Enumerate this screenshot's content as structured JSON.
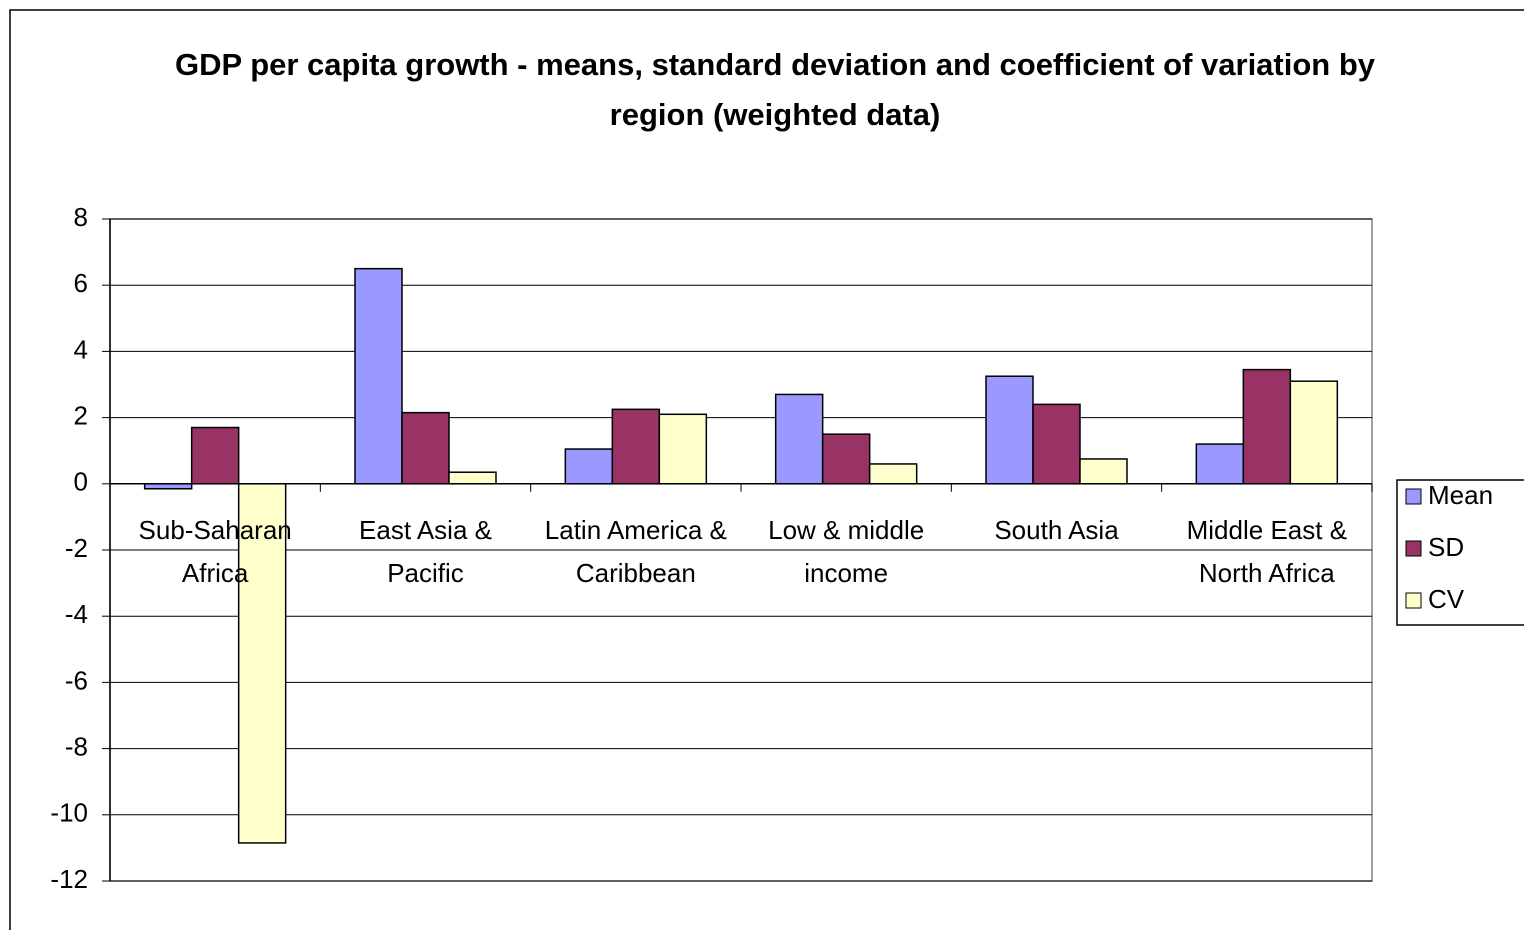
{
  "chart_data": {
    "type": "bar",
    "title": "GDP per capita growth  -  means, standard deviation and coefficient of variation by region (weighted data)",
    "categories": [
      "Sub-Saharan Africa",
      "East Asia & Pacific",
      "Latin America & Caribbean",
      "Low & middle income",
      "South Asia",
      "Middle East & North Africa"
    ],
    "series": [
      {
        "name": "Mean",
        "color": "#9999ff",
        "values": [
          -0.15,
          6.5,
          1.05,
          2.7,
          3.25,
          1.2
        ]
      },
      {
        "name": "SD",
        "color": "#993366",
        "values": [
          1.7,
          2.15,
          2.25,
          1.5,
          2.4,
          3.45
        ]
      },
      {
        "name": "CV",
        "color": "#ffffcc",
        "values": [
          -10.85,
          0.35,
          2.1,
          0.6,
          0.75,
          3.1
        ]
      }
    ],
    "ylim": [
      -12,
      8
    ],
    "yticks": [
      -12,
      -10,
      -8,
      -6,
      -4,
      -2,
      0,
      2,
      4,
      6,
      8
    ],
    "grid": true,
    "legend": "right"
  }
}
